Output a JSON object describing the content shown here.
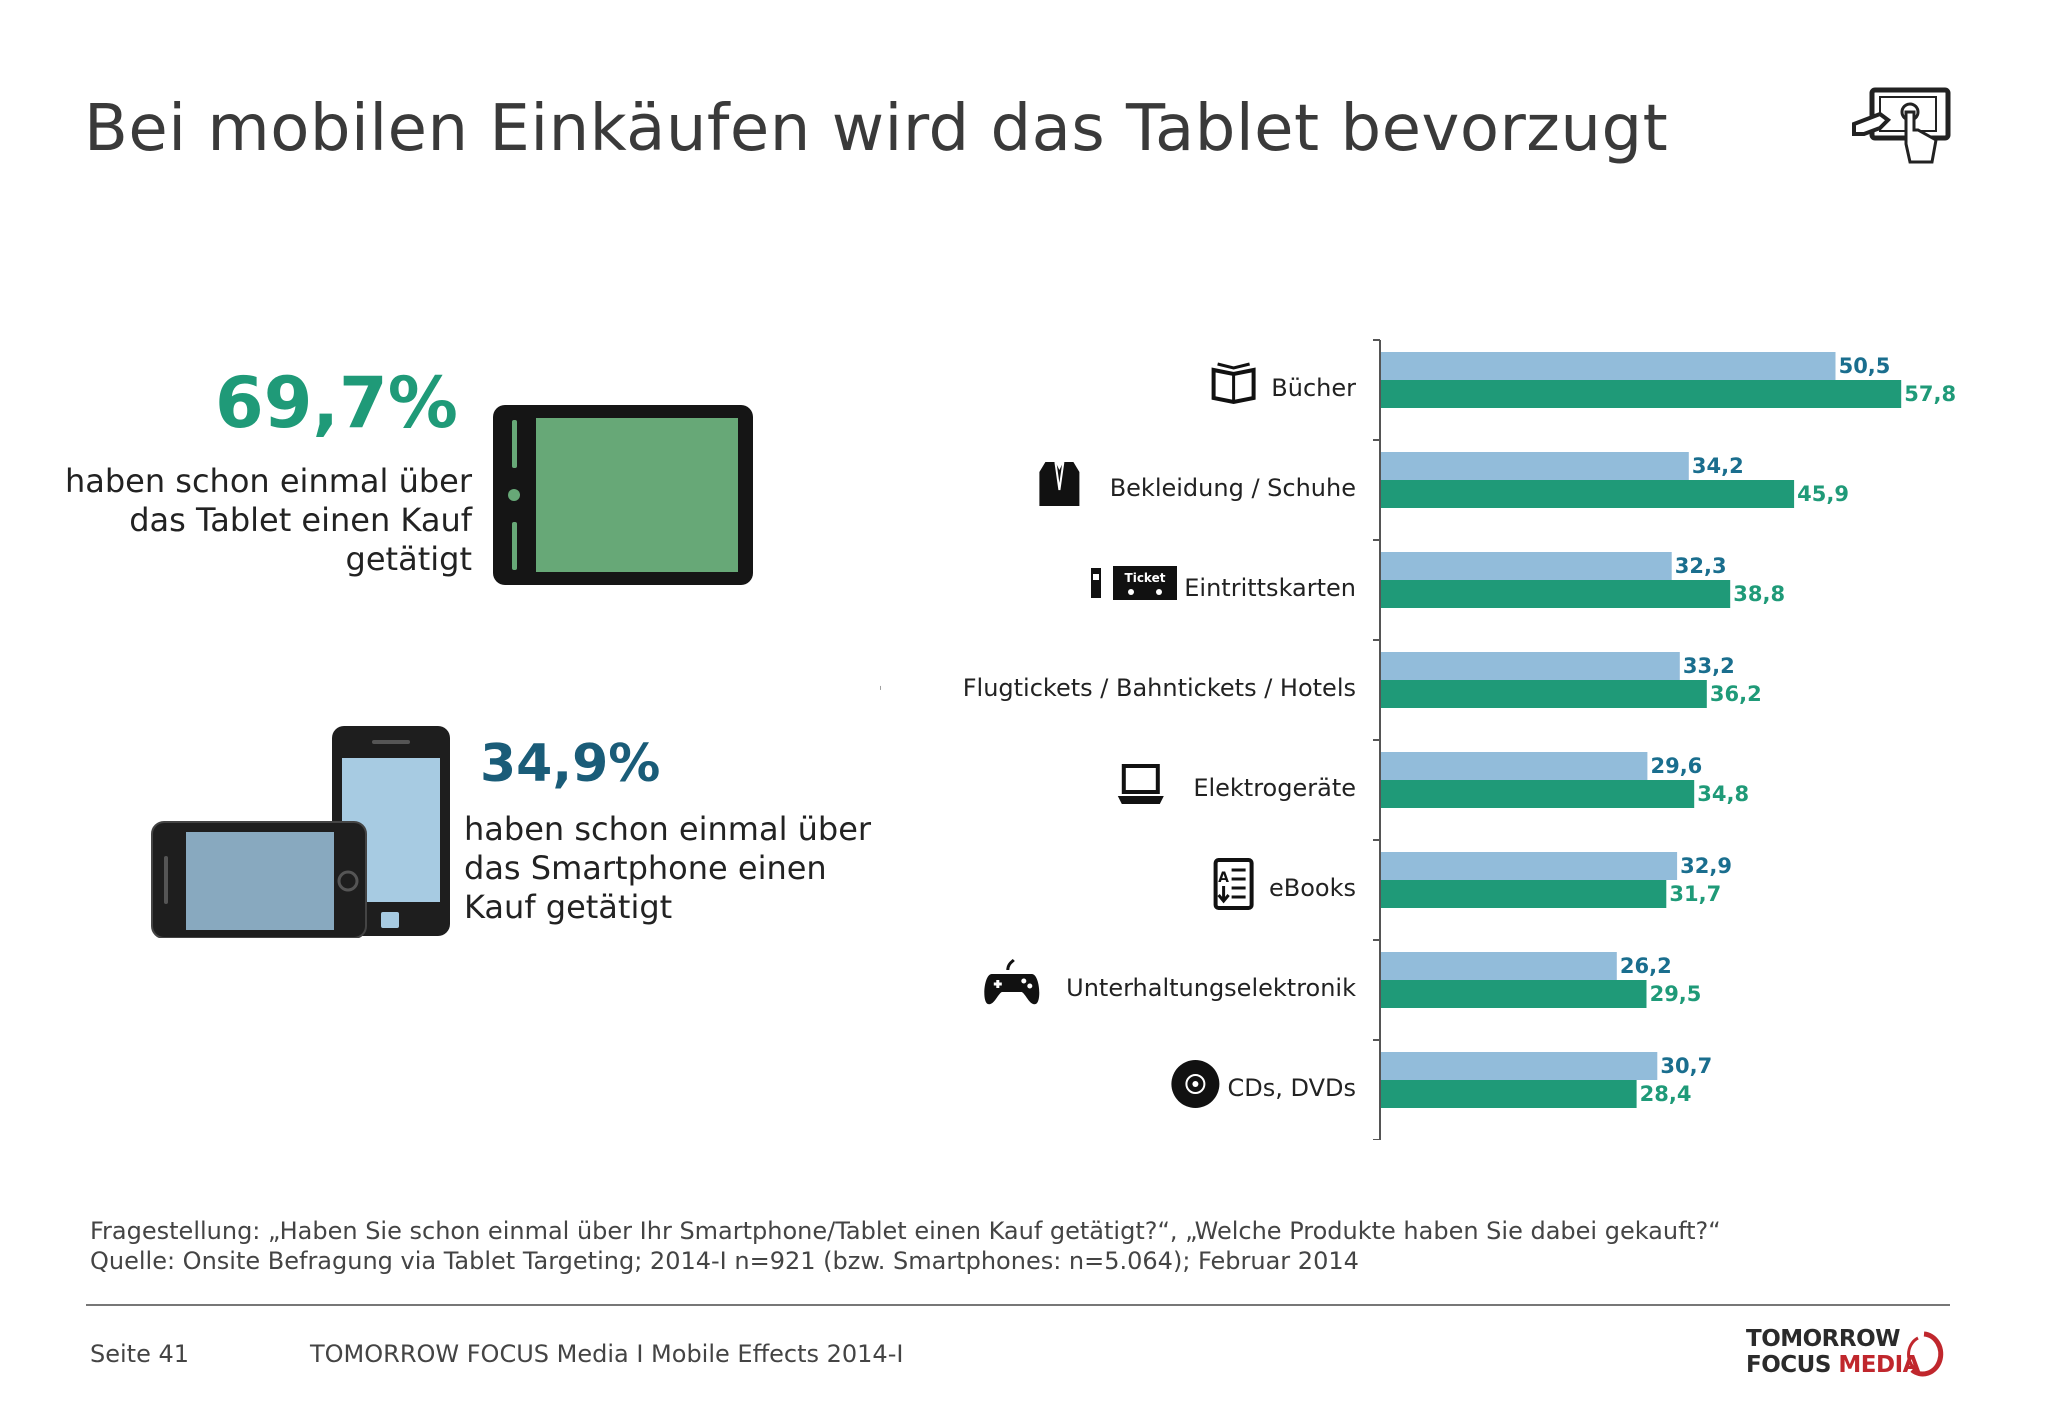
{
  "title": "Bei mobilen Einkäufen wird das Tablet bevorzugt",
  "tablet_stat": {
    "value": "69,7%",
    "text_lines": [
      "haben schon einmal über",
      "das Tablet einen Kauf",
      "getätigt"
    ]
  },
  "phone_stat": {
    "value": "34,9%",
    "text_lines": [
      "haben schon einmal über",
      "das Smartphone einen",
      "Kauf getätigt"
    ]
  },
  "footnote": {
    "question": "Fragestellung: „Haben Sie schon einmal über Ihr Smartphone/Tablet einen Kauf getätigt?“, „Welche Produkte haben Sie dabei gekauft?“",
    "source": "Quelle: Onsite Befragung via Tablet Targeting; 2014-I n=921 (bzw. Smartphones: n=5.064); Februar 2014"
  },
  "footer": {
    "page": "Seite 41",
    "title": "TOMORROW FOCUS Media  I  Mobile Effects 2014-I"
  },
  "logo": {
    "line1": "TOMORROW",
    "line2a": "FOCUS",
    "line2b": "MEDIA"
  },
  "colors": {
    "green": "#1f9a78",
    "light_blue": "#92bcda",
    "dark_blue": "#1a5c78"
  },
  "chart_data": {
    "type": "bar",
    "orientation": "horizontal",
    "categories": [
      "Bücher",
      "Bekleidung / Schuhe",
      "Eintrittskarten",
      "Flugtickets / Bahntickets / Hotels",
      "Elektrogeräte",
      "eBooks",
      "Unterhaltungselektronik",
      "CDs, DVDs"
    ],
    "category_icons": [
      "book-icon",
      "jacket-icon",
      "ticket-icon",
      "airplane-icon",
      "laptop-icon",
      "ebook-icon",
      "gamepad-icon",
      "cd-icon"
    ],
    "series": [
      {
        "values": [
          50.5,
          34.2,
          32.3,
          33.2,
          29.6,
          32.9,
          26.2,
          30.7
        ],
        "labels": [
          "50,5",
          "34,2",
          "32,3",
          "33,2",
          "29,6",
          "32,9",
          "26,2",
          "30,7"
        ],
        "color": "#92bcda",
        "label_color": "#1a6e8e"
      },
      {
        "values": [
          57.8,
          45.9,
          38.8,
          36.2,
          34.8,
          31.7,
          29.5,
          28.4
        ],
        "labels": [
          "57,8",
          "45,9",
          "38,8",
          "36,2",
          "34,8",
          "31,7",
          "29,5",
          "28,4"
        ],
        "color": "#1f9a78",
        "label_color": "#1f9a78"
      }
    ],
    "xlim": [
      0,
      60
    ],
    "grid": false
  }
}
